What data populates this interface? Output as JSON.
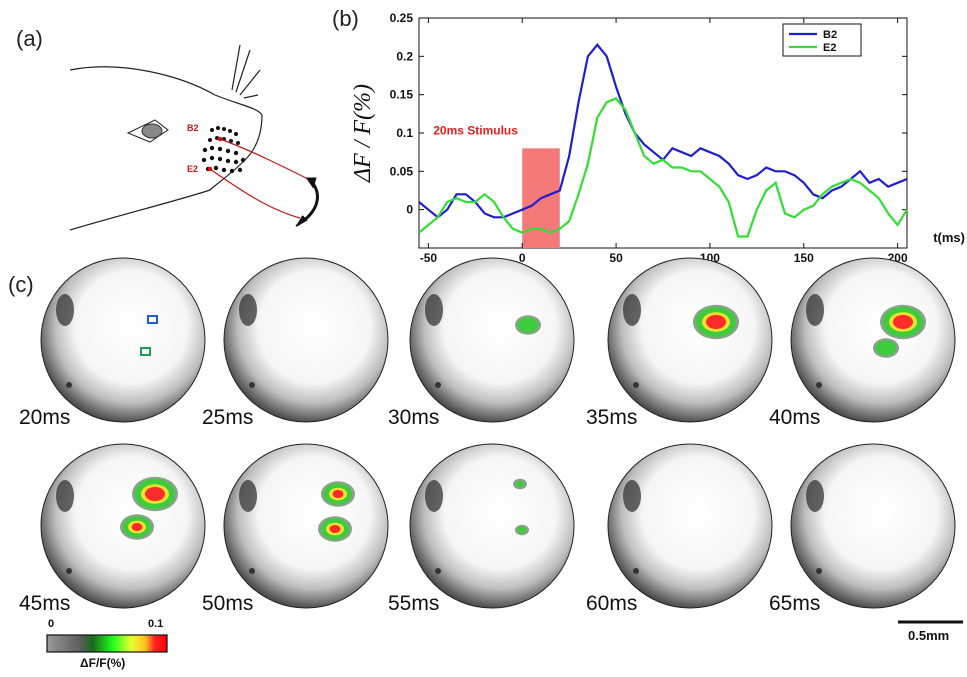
{
  "panels": {
    "a": "(a)",
    "b": "(b)",
    "c": "(c)"
  },
  "whisker_labels": {
    "b2": "B2",
    "e2": "E2"
  },
  "chart_data": {
    "type": "line",
    "ylabel": "ΔF / F(%)",
    "xlabel": "t(ms)",
    "xlim": [
      -55,
      205
    ],
    "ylim": [
      -0.05,
      0.25
    ],
    "xticks": [
      -50,
      0,
      50,
      100,
      150,
      200
    ],
    "yticks": [
      0,
      0.05,
      0.1,
      0.15,
      0.2,
      0.25
    ],
    "ytick_labels": [
      "0",
      "0.05",
      "0.1",
      "0.15",
      "0.2",
      "0.25"
    ],
    "stimulus": {
      "start": 0,
      "end": 20,
      "height": 0.08,
      "label": "20ms Stimulus",
      "color": "#f47a7a"
    },
    "legend": {
      "position": "top-right"
    },
    "series": [
      {
        "name": "B2",
        "color": "#1f1fcf",
        "x": [
          -55,
          -50,
          -45,
          -40,
          -35,
          -30,
          -25,
          -20,
          -15,
          -10,
          -5,
          0,
          5,
          10,
          15,
          20,
          25,
          30,
          35,
          40,
          45,
          50,
          55,
          60,
          65,
          70,
          75,
          80,
          85,
          90,
          95,
          100,
          105,
          110,
          115,
          120,
          125,
          130,
          135,
          140,
          145,
          150,
          155,
          160,
          165,
          170,
          175,
          180,
          185,
          190,
          195,
          200,
          205
        ],
        "y": [
          0.01,
          0.0,
          -0.01,
          0.0,
          0.02,
          0.02,
          0.01,
          -0.005,
          -0.01,
          -0.01,
          -0.005,
          0.0,
          0.005,
          0.015,
          0.02,
          0.025,
          0.07,
          0.14,
          0.2,
          0.215,
          0.2,
          0.16,
          0.125,
          0.1,
          0.085,
          0.075,
          0.065,
          0.08,
          0.075,
          0.07,
          0.08,
          0.075,
          0.07,
          0.06,
          0.045,
          0.04,
          0.045,
          0.055,
          0.05,
          0.05,
          0.045,
          0.035,
          0.02,
          0.015,
          0.025,
          0.03,
          0.04,
          0.05,
          0.035,
          0.04,
          0.03,
          0.035,
          0.04
        ]
      },
      {
        "name": "E2",
        "color": "#33dd33",
        "x": [
          -55,
          -50,
          -45,
          -40,
          -35,
          -30,
          -25,
          -20,
          -15,
          -10,
          -5,
          0,
          5,
          10,
          15,
          20,
          25,
          30,
          35,
          40,
          45,
          50,
          55,
          60,
          65,
          70,
          75,
          80,
          85,
          90,
          95,
          100,
          105,
          110,
          115,
          120,
          125,
          130,
          135,
          140,
          145,
          150,
          155,
          160,
          165,
          170,
          175,
          180,
          185,
          190,
          195,
          200,
          205
        ],
        "y": [
          -0.03,
          -0.02,
          -0.01,
          0.01,
          0.015,
          0.01,
          0.01,
          0.02,
          0.01,
          -0.01,
          -0.025,
          -0.03,
          -0.025,
          -0.025,
          -0.03,
          -0.025,
          -0.015,
          0.02,
          0.06,
          0.12,
          0.14,
          0.145,
          0.13,
          0.1,
          0.07,
          0.06,
          0.065,
          0.055,
          0.055,
          0.05,
          0.05,
          0.04,
          0.03,
          0.01,
          -0.035,
          -0.035,
          0.0,
          0.025,
          0.035,
          -0.005,
          -0.01,
          0.0,
          0.005,
          0.02,
          0.03,
          0.035,
          0.04,
          0.035,
          0.025,
          0.015,
          -0.005,
          -0.02,
          0.0
        ]
      }
    ]
  },
  "frames": [
    {
      "label": "20ms",
      "spots": []
    },
    {
      "label": "25ms",
      "spots": []
    },
    {
      "label": "30ms",
      "spots": [
        {
          "level": 1
        }
      ]
    },
    {
      "label": "35ms",
      "spots": [
        {
          "level": 3
        }
      ]
    },
    {
      "label": "40ms",
      "spots": [
        {
          "level": 3
        },
        {
          "level": 1
        }
      ]
    },
    {
      "label": "45ms",
      "spots": [
        {
          "level": 3
        },
        {
          "level": 2
        }
      ]
    },
    {
      "label": "50ms",
      "spots": [
        {
          "level": 2
        },
        {
          "level": 2
        }
      ]
    },
    {
      "label": "55ms",
      "spots": [
        {
          "level": 0
        },
        {
          "level": 0
        }
      ]
    },
    {
      "label": "60ms",
      "spots": []
    },
    {
      "label": "65ms",
      "spots": []
    }
  ],
  "colorbar": {
    "min_label": "0",
    "max_label": "0.1",
    "title": "ΔF/F(%)"
  },
  "scale_bar": {
    "label": "0.5mm"
  },
  "roi_colors": {
    "b2": "#1f5fcf",
    "e2": "#1aa05a"
  }
}
